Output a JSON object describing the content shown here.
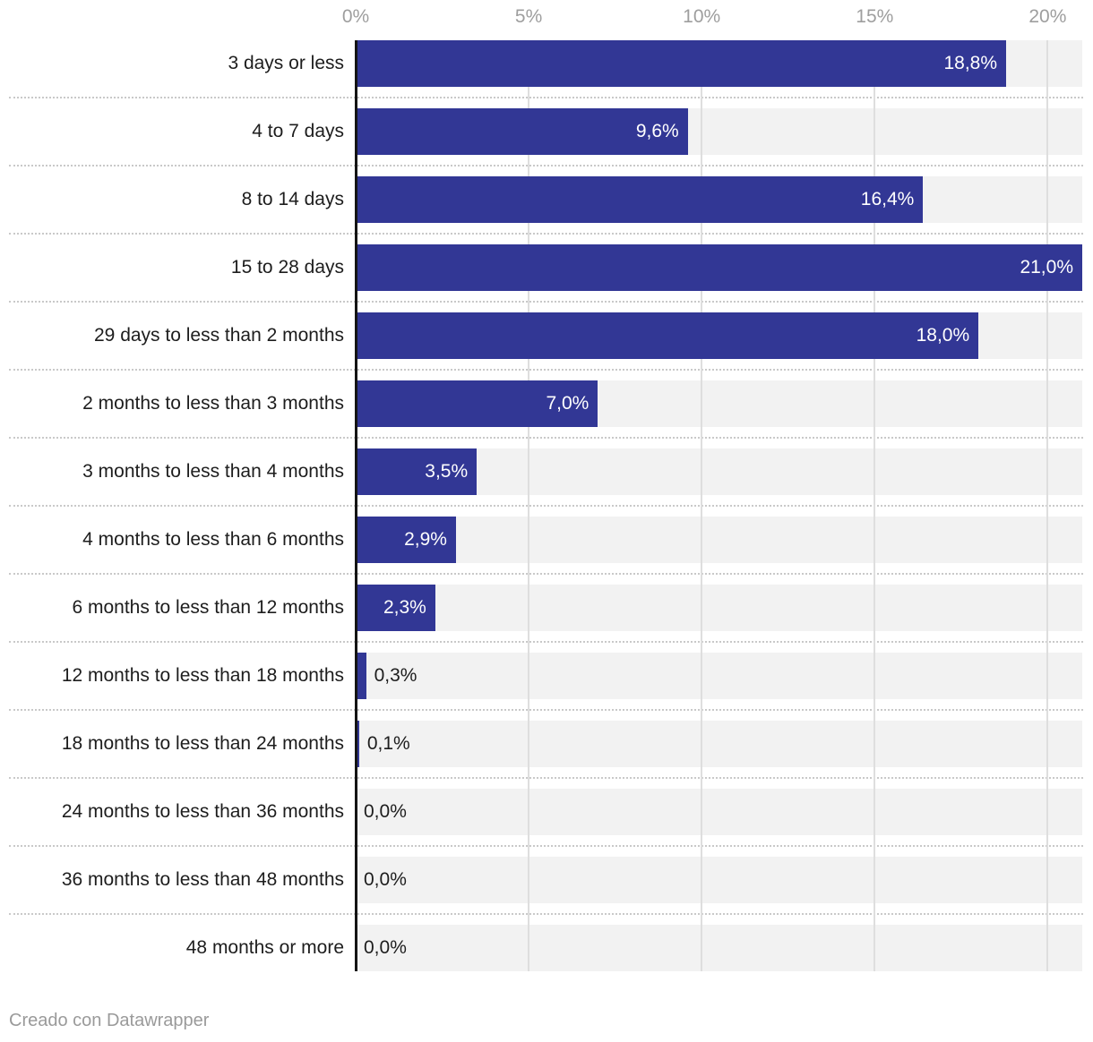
{
  "chart_data": {
    "type": "bar",
    "orientation": "horizontal",
    "categories": [
      "3 days or less",
      "4 to 7 days",
      "8 to 14 days",
      "15 to 28 days",
      "29 days to less than 2 months",
      "2 months to less than 3 months",
      "3 months to less than 4 months",
      "4 months to less than 6 months",
      "6 months to less than 12 months",
      "12 months to less than 18 months",
      "18 months to less than 24 months",
      "24 months to less than 36 months",
      "36 months to less than 48 months",
      "48 months or more"
    ],
    "values": [
      18.8,
      9.6,
      16.4,
      21.0,
      18.0,
      7.0,
      3.5,
      2.9,
      2.3,
      0.3,
      0.1,
      0.0,
      0.0,
      0.0
    ],
    "value_labels": [
      "18,8%",
      "9,6%",
      "16,4%",
      "21,0%",
      "18,0%",
      "7,0%",
      "3,5%",
      "2,9%",
      "2,3%",
      "0,3%",
      "0,1%",
      "0,0%",
      "0,0%",
      "0,0%"
    ],
    "xlabel": "",
    "ylabel": "",
    "xlim": [
      0,
      21
    ],
    "x_ticks": [
      {
        "label": "0%",
        "value": 0
      },
      {
        "label": "5%",
        "value": 5
      },
      {
        "label": "10%",
        "value": 10
      },
      {
        "label": "15%",
        "value": 15
      },
      {
        "label": "20%",
        "value": 20
      }
    ],
    "grid": true,
    "legend": "none",
    "colors": {
      "bar": "#323795",
      "track": "#f2f2f2",
      "gridline": "#dedede",
      "separator": "#c9c9c9",
      "baseline": "#141414",
      "axis_text": "#9e9e9e",
      "label_text": "#1d1d1d",
      "value_inside_text": "#ffffff",
      "value_outside_text": "#1d1d1d",
      "footer_text": "#9a9a9a"
    }
  },
  "footer": {
    "credit": "Creado con Datawrapper"
  }
}
